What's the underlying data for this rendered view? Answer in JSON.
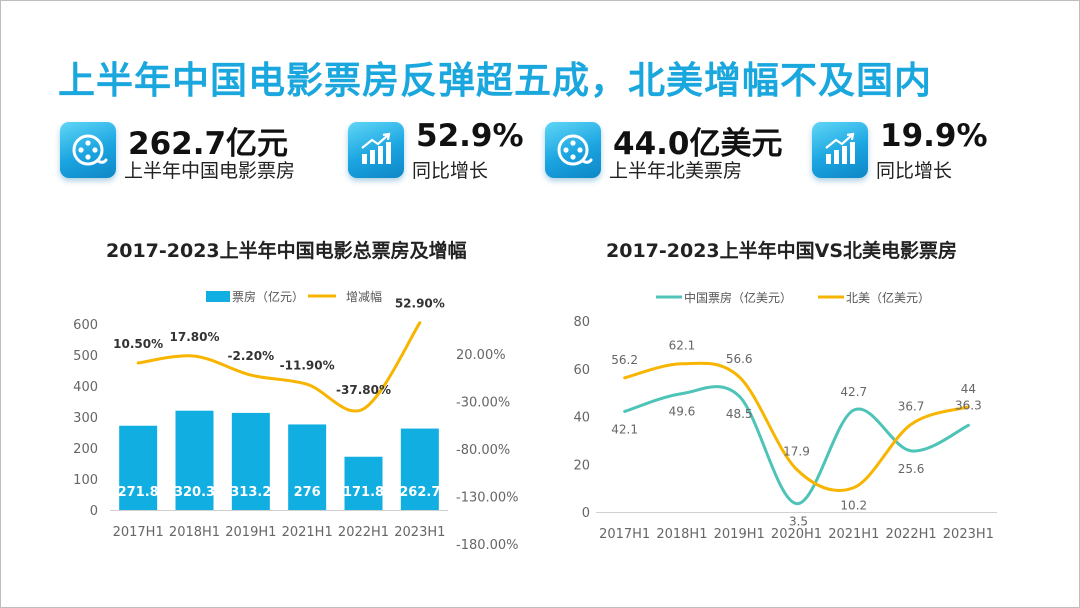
{
  "headline": "上半年中国电影票房反弹超五成，北美增幅不及国内",
  "kpis": [
    {
      "value": "262.7亿元",
      "label": "上半年中国电影票房",
      "icon": "film-reel-icon"
    },
    {
      "value": "52.9%",
      "label": "同比增长",
      "icon": "bar-growth-icon"
    },
    {
      "value": "44.0亿美元",
      "label": "上半年北美票房",
      "icon": "film-reel-icon"
    },
    {
      "value": "19.9%",
      "label": "同比增长",
      "icon": "bar-growth-icon"
    }
  ],
  "colors": {
    "accent": "#1aa7de",
    "bar": "#11aee1",
    "line_orange": "#f7b500",
    "line_teal": "#4ec3b8"
  },
  "chart_data": [
    {
      "type": "bar",
      "title": "2017-2023上半年中国电影总票房及增幅",
      "categories": [
        "2017H1",
        "2018H1",
        "2019H1",
        "2021H1",
        "2022H1",
        "2023H1"
      ],
      "series": [
        {
          "name": "票房（亿元）",
          "type": "bar",
          "values": [
            271.8,
            320.3,
            313.2,
            276,
            171.8,
            262.7
          ],
          "labels": [
            "271.8",
            "320.3",
            "313.2",
            "276",
            "171.8",
            "262.7"
          ]
        },
        {
          "name": "增减幅",
          "type": "line",
          "values": [
            10.5,
            17.8,
            -2.2,
            -11.9,
            -37.8,
            52.9
          ],
          "labels": [
            "10.50%",
            "17.80%",
            "-2.20%",
            "-11.90%",
            "-37.80%",
            "52.90%"
          ]
        }
      ],
      "ylim": [
        0,
        600
      ],
      "yticks": [
        "0",
        "100",
        "200",
        "300",
        "400",
        "500",
        "600"
      ],
      "y2ticks_values": [
        20,
        -30,
        -80,
        -130,
        -180
      ],
      "y2ticks": [
        "20.00%",
        "-30.00%",
        "-80.00%",
        "-130.00%",
        "-180.00%"
      ],
      "legend": "top"
    },
    {
      "type": "line",
      "title": "2017-2023上半年中国VS北美电影票房",
      "categories": [
        "2017H1",
        "2018H1",
        "2019H1",
        "2020H1",
        "2021H1",
        "2022H1",
        "2023H1"
      ],
      "series": [
        {
          "name": "中国票房（亿美元）",
          "values": [
            42.1,
            49.6,
            48.5,
            3.5,
            42.7,
            25.6,
            36.3
          ],
          "labels": [
            "42.1",
            "49.6",
            "48.5",
            "3.5",
            "42.7",
            "25.6",
            "36.3"
          ]
        },
        {
          "name": "北美（亿美元）",
          "values": [
            56.2,
            62.1,
            56.6,
            17.9,
            10.2,
            36.7,
            44
          ],
          "labels": [
            "56.2",
            "62.1",
            "56.6",
            "17.9",
            "10.2",
            "36.7",
            "44"
          ]
        }
      ],
      "ylim": [
        0,
        80
      ],
      "yticks": [
        "0",
        "20",
        "40",
        "60",
        "80"
      ],
      "legend": "top"
    }
  ]
}
